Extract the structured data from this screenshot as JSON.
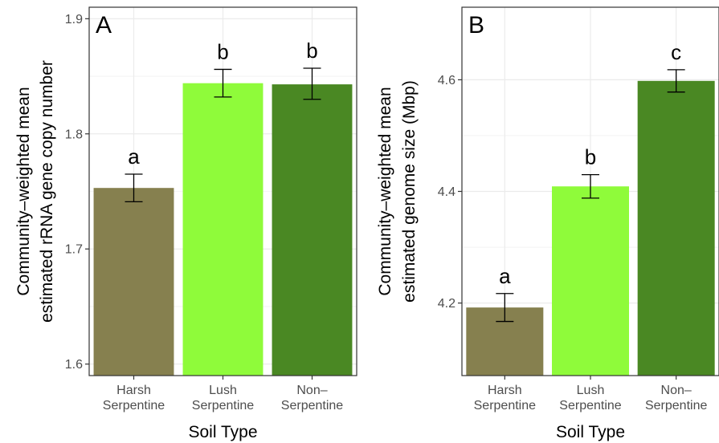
{
  "chart_data": [
    {
      "type": "bar",
      "panel": "A",
      "categories": [
        "Harsh\nSerpentine",
        "Lush\nSerpentine",
        "Non–\nSerpentine"
      ],
      "values": [
        1.753,
        1.844,
        1.843
      ],
      "error_low": [
        1.741,
        1.832,
        1.83
      ],
      "error_high": [
        1.765,
        1.856,
        1.857
      ],
      "letters": [
        "a",
        "b",
        "b"
      ],
      "colors": [
        "#86804f",
        "#8ffb3a",
        "#4a8823"
      ],
      "xlabel": "Soil Type",
      "ylabel_lines": [
        "Community–weighted mean",
        "estimated rRNA gene copy number"
      ],
      "yticks": [
        1.6,
        1.7,
        1.8,
        1.9
      ],
      "ytick_labels": [
        "1.6",
        "1.7",
        "1.8",
        "1.9"
      ],
      "ylim": [
        1.59,
        1.91
      ],
      "grid": true
    },
    {
      "type": "bar",
      "panel": "B",
      "categories": [
        "Harsh\nSerpentine",
        "Lush\nSerpentine",
        "Non–\nSerpentine"
      ],
      "values": [
        4.192,
        4.409,
        4.598
      ],
      "error_low": [
        4.167,
        4.388,
        4.578
      ],
      "error_high": [
        4.217,
        4.43,
        4.618
      ],
      "letters": [
        "a",
        "b",
        "c"
      ],
      "colors": [
        "#86804f",
        "#8ffb3a",
        "#4a8823"
      ],
      "xlabel": "Soil Type",
      "ylabel_lines": [
        "Community–weighted mean",
        "estimated genome size (Mbp)"
      ],
      "yticks": [
        4.2,
        4.4,
        4.6
      ],
      "ytick_labels": [
        "4.2",
        "4.4",
        "4.6"
      ],
      "ylim": [
        4.07,
        4.73
      ],
      "grid": true
    }
  ]
}
